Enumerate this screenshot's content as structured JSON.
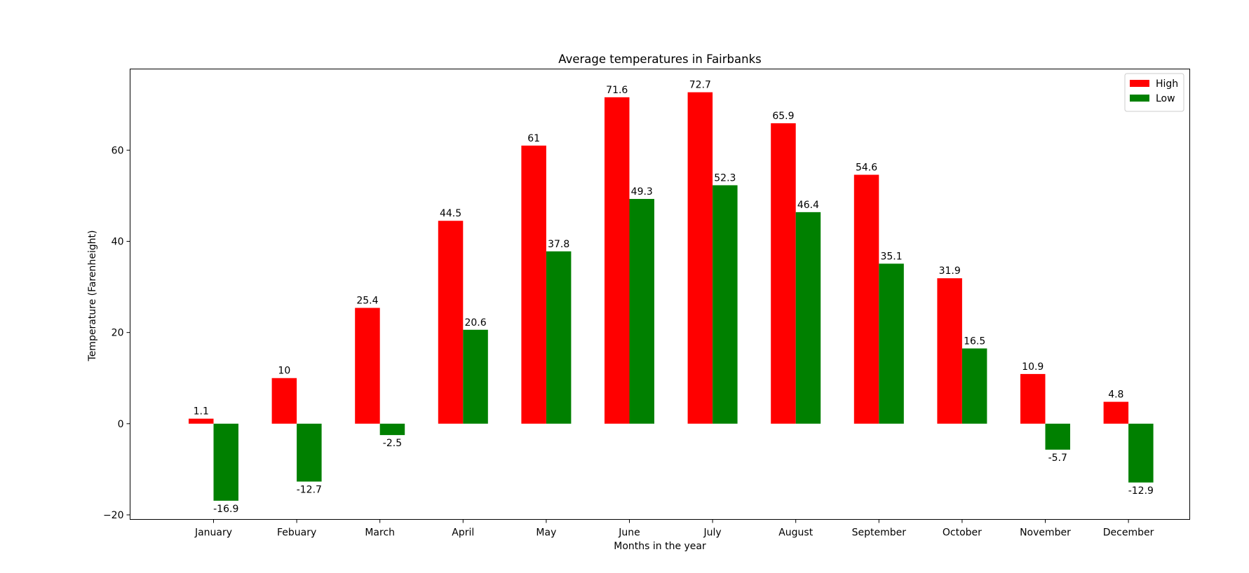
{
  "chart_data": {
    "type": "bar",
    "title": "Average temperatures in Fairbanks",
    "xlabel": "Months in the year",
    "ylabel": "Temperature (Farenheight)",
    "categories": [
      "January",
      "Febuary",
      "March",
      "April",
      "May",
      "June",
      "July",
      "August",
      "September",
      "October",
      "November",
      "December"
    ],
    "series": [
      {
        "name": "High",
        "color": "#ff0000",
        "values": [
          1.1,
          10,
          25.4,
          44.5,
          61,
          71.6,
          72.7,
          65.9,
          54.6,
          31.9,
          10.9,
          4.8
        ]
      },
      {
        "name": "Low",
        "color": "#008000",
        "values": [
          -16.9,
          -12.7,
          -2.5,
          20.6,
          37.8,
          49.3,
          52.3,
          46.4,
          35.1,
          16.5,
          -5.7,
          -12.9
        ]
      }
    ],
    "ylim": [
      -21,
      77.8
    ],
    "yticks": [
      -20,
      0,
      20,
      40,
      60
    ],
    "grid": false,
    "legend": "top-right"
  }
}
